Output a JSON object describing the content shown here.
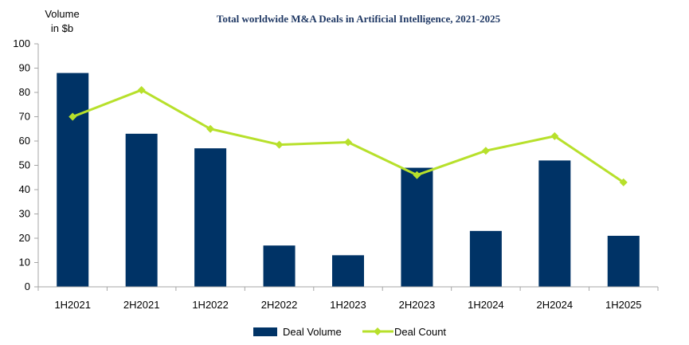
{
  "colors": {
    "bar": "#003366",
    "line": "#b7e02b",
    "axis": "#a6a6a6"
  },
  "chart_data": {
    "type": "bar",
    "title": "Total worldwide M&A Deals in Artificial Intelligence, 2021-2025",
    "ylabel_line1": "Volume",
    "ylabel_line2": "in $b",
    "xlabel": "",
    "ylim": [
      0,
      100
    ],
    "yticks": [
      0,
      10,
      20,
      30,
      40,
      50,
      60,
      70,
      80,
      90,
      100
    ],
    "categories": [
      "1H2021",
      "2H2021",
      "1H2022",
      "2H2022",
      "1H2023",
      "2H2023",
      "1H2024",
      "2H2024",
      "1H2025"
    ],
    "series": [
      {
        "name": "Deal Volume",
        "kind": "bar",
        "values": [
          88,
          63,
          57,
          17,
          13,
          49,
          23,
          52,
          21
        ]
      },
      {
        "name": "Deal Count",
        "kind": "line",
        "values": [
          70,
          81,
          65,
          58.5,
          59.5,
          46,
          56,
          62,
          43
        ]
      }
    ],
    "legend_position": "bottom"
  }
}
